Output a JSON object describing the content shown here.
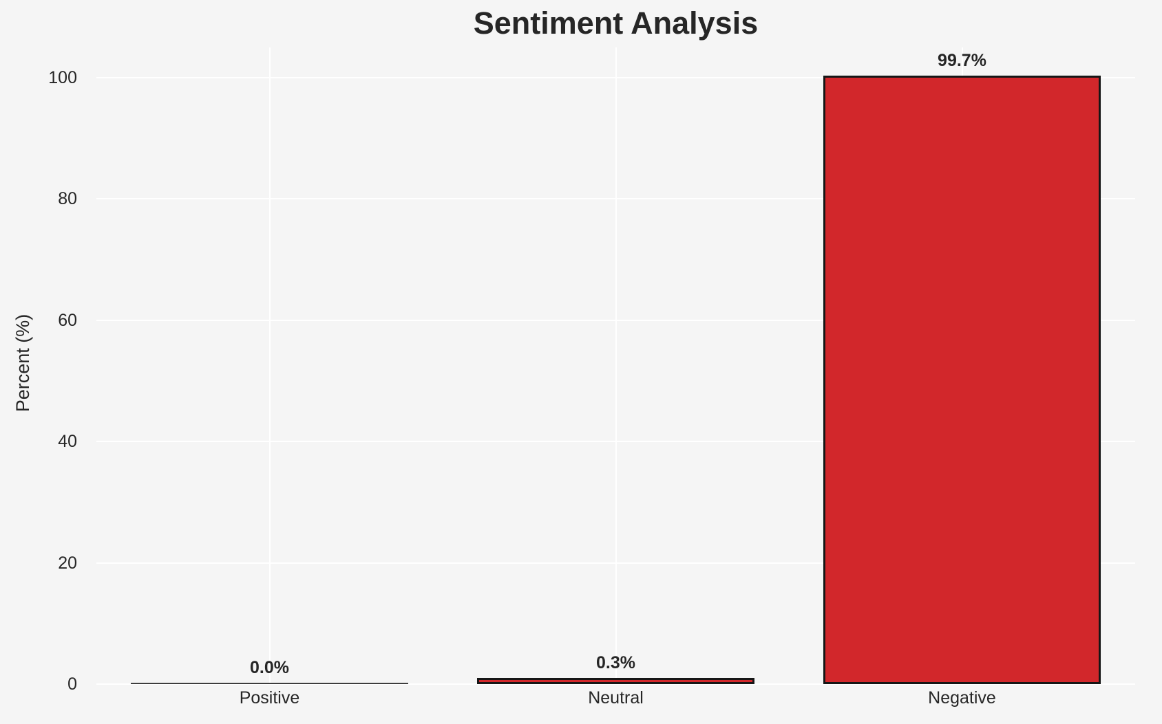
{
  "page": {
    "background_color": "#f5f5f5"
  },
  "chart_data": {
    "type": "bar",
    "title": "Sentiment Analysis",
    "xlabel": "",
    "ylabel": "Percent (%)",
    "categories": [
      "Positive",
      "Neutral",
      "Negative"
    ],
    "values": [
      0.0,
      0.3,
      99.7
    ],
    "value_labels": [
      "0.0%",
      "0.3%",
      "99.7%"
    ],
    "yticks": [
      0,
      20,
      40,
      60,
      80,
      100
    ],
    "ylim": [
      0,
      105
    ],
    "grid": "on",
    "grid_color": "#ffffff",
    "plot_background": "#f5f5f5",
    "bar_color": "#d2272b",
    "bar_edge_color": "#161616",
    "text_color": "#262626",
    "legend": "none"
  }
}
